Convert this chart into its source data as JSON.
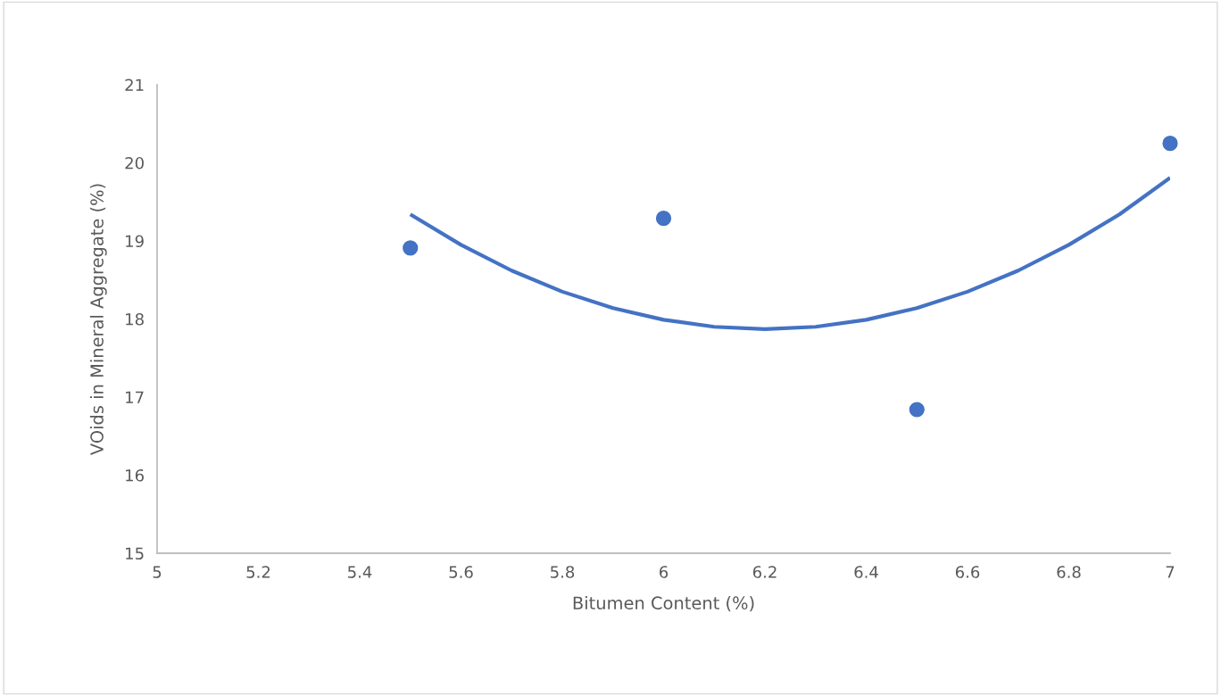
{
  "chart_data": {
    "type": "scatter",
    "xlabel": "Bitumen Content (%)",
    "ylabel": "VOids in Mineral Aggregate (%)",
    "xlim": [
      5,
      7
    ],
    "xticks": [
      5,
      5.2,
      5.4,
      5.6,
      5.8,
      6,
      6.2,
      6.4,
      6.6,
      6.8,
      7
    ],
    "ylim": [
      15,
      21
    ],
    "yticks": [
      15,
      16,
      17,
      18,
      19,
      20,
      21
    ],
    "grid": false,
    "marker": "circle",
    "series": [
      {
        "color": "#4472c4",
        "x": [
          5.5,
          6,
          6.5,
          7
        ],
        "values": [
          18.91,
          19.29,
          16.84,
          20.25
        ]
      },
      {
        "type": "line",
        "color": "#4472c4",
        "line_style": "solid",
        "marker": "none",
        "x": [
          5.5,
          5.6,
          5.7,
          5.8,
          5.9,
          6.0,
          6.1,
          6.2,
          6.3,
          6.4,
          6.5,
          6.6,
          6.7,
          6.8,
          6.9,
          7.0
        ],
        "values": [
          19.34,
          18.95,
          18.62,
          18.35,
          18.14,
          17.99,
          17.9,
          17.87,
          17.9,
          17.99,
          18.14,
          18.35,
          18.62,
          18.95,
          19.34,
          19.81
        ]
      }
    ]
  }
}
